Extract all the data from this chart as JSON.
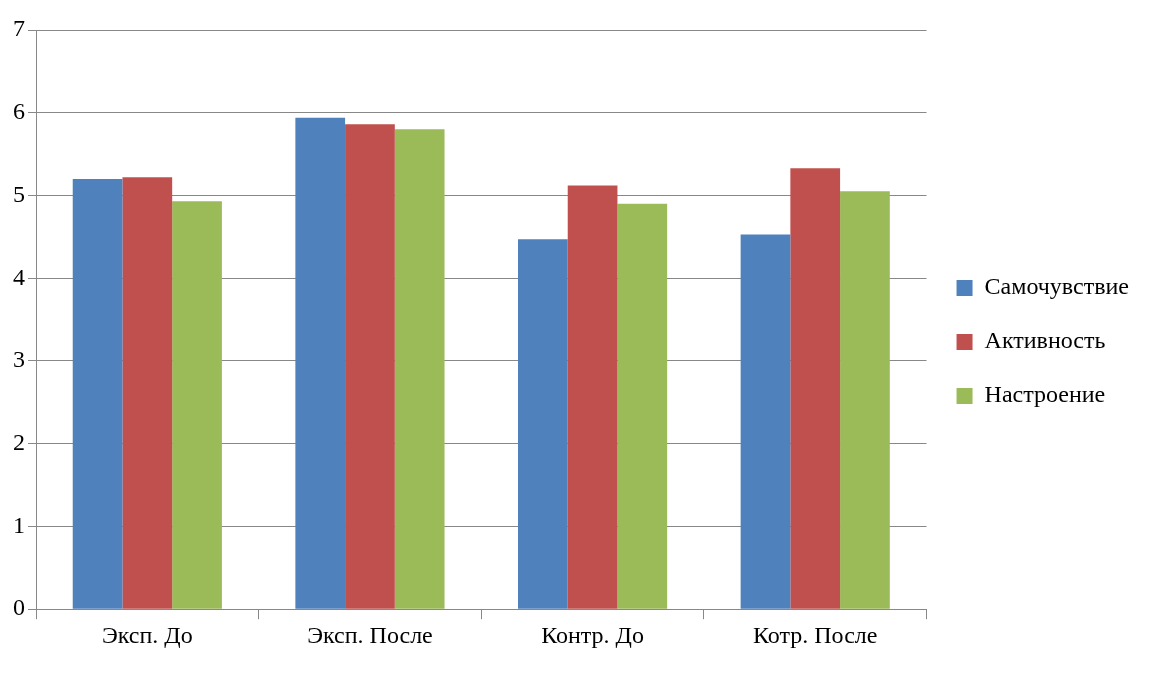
{
  "chart_data": {
    "type": "bar",
    "categories": [
      "Эксп. До",
      "Эксп. После",
      "Контр. До",
      "Котр. После"
    ],
    "series": [
      {
        "name": "Самочувствие",
        "color": "#4f81bd",
        "values": [
          5.2,
          5.94,
          4.47,
          4.53
        ]
      },
      {
        "name": "Активность",
        "color": "#c0504d",
        "values": [
          5.22,
          5.86,
          5.12,
          5.33
        ]
      },
      {
        "name": "Настроение",
        "color": "#9bbb59",
        "values": [
          4.93,
          5.8,
          4.9,
          5.05
        ]
      }
    ],
    "ylim": [
      0,
      7
    ],
    "yticks": [
      0,
      1,
      2,
      3,
      4,
      5,
      6,
      7
    ],
    "grid": "y",
    "legend": "right"
  }
}
